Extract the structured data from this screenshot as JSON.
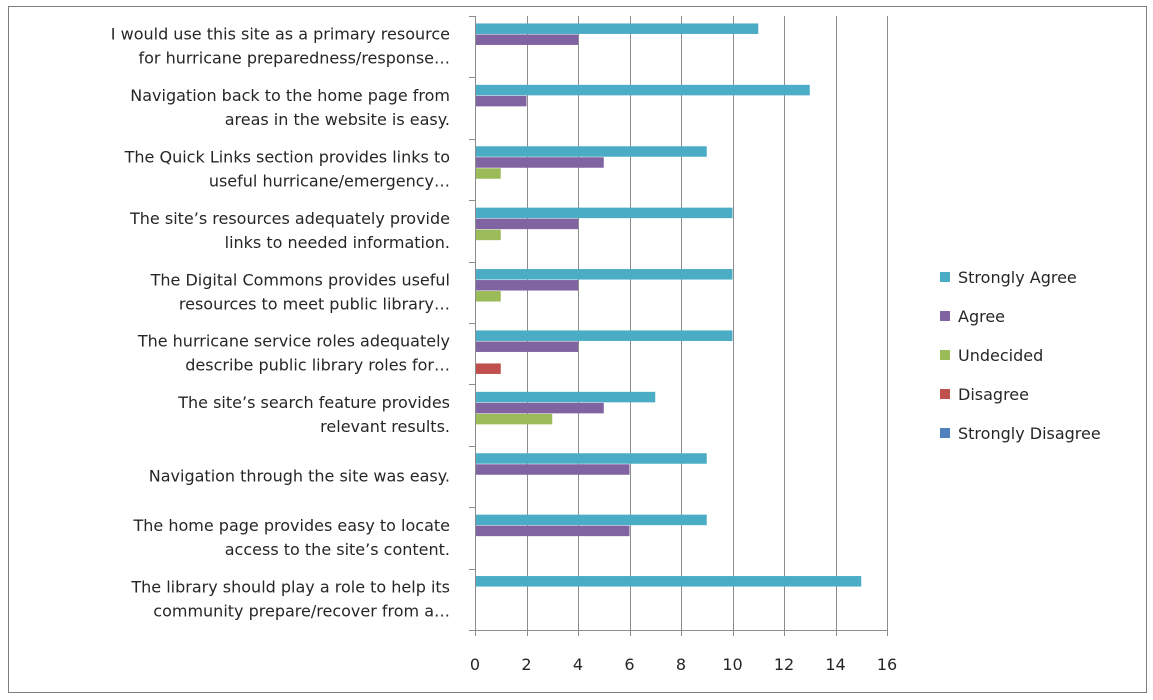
{
  "chart_data": {
    "type": "bar",
    "orientation": "horizontal",
    "categories": [
      [
        "I would use this site as a primary resource",
        "for hurricane preparedness/response…"
      ],
      [
        "Navigation back to the home page from",
        "areas in the website is easy."
      ],
      [
        "The Quick Links section provides links to",
        "useful hurricane/emergency…"
      ],
      [
        "The site’s resources adequately provide",
        "links to needed information."
      ],
      [
        "The Digital Commons provides useful",
        "resources to meet public library…"
      ],
      [
        "The hurricane service roles adequately",
        "describe public library roles for…"
      ],
      [
        "The site’s search feature provides",
        "relevant results."
      ],
      [
        "Navigation through the site was easy."
      ],
      [
        "The home page provides easy to locate",
        "access to the site’s content."
      ],
      [
        "The library should play a role to help its",
        "community prepare/recover from a…"
      ]
    ],
    "series": [
      {
        "name": "Strongly Agree",
        "color": "#4bacc6",
        "values": [
          11,
          13,
          9,
          10,
          10,
          10,
          7,
          9,
          9,
          15
        ]
      },
      {
        "name": "Agree",
        "color": "#8064a2",
        "values": [
          4,
          2,
          5,
          4,
          4,
          4,
          5,
          6,
          6,
          0
        ]
      },
      {
        "name": "Undecided",
        "color": "#9bbb59",
        "values": [
          0,
          0,
          1,
          1,
          1,
          0,
          3,
          0,
          0,
          0
        ]
      },
      {
        "name": "Disagree",
        "color": "#c0504d",
        "values": [
          0,
          0,
          0,
          0,
          0,
          1,
          0,
          0,
          0,
          0
        ]
      },
      {
        "name": "Strongly Disagree",
        "color": "#4f81bd",
        "values": [
          0,
          0,
          0,
          0,
          0,
          0,
          0,
          0,
          0,
          0
        ]
      }
    ],
    "xlim": [
      0,
      16
    ],
    "xticks": [
      0,
      2,
      4,
      6,
      8,
      10,
      12,
      14,
      16
    ],
    "grid": true,
    "legend_position": "right"
  }
}
